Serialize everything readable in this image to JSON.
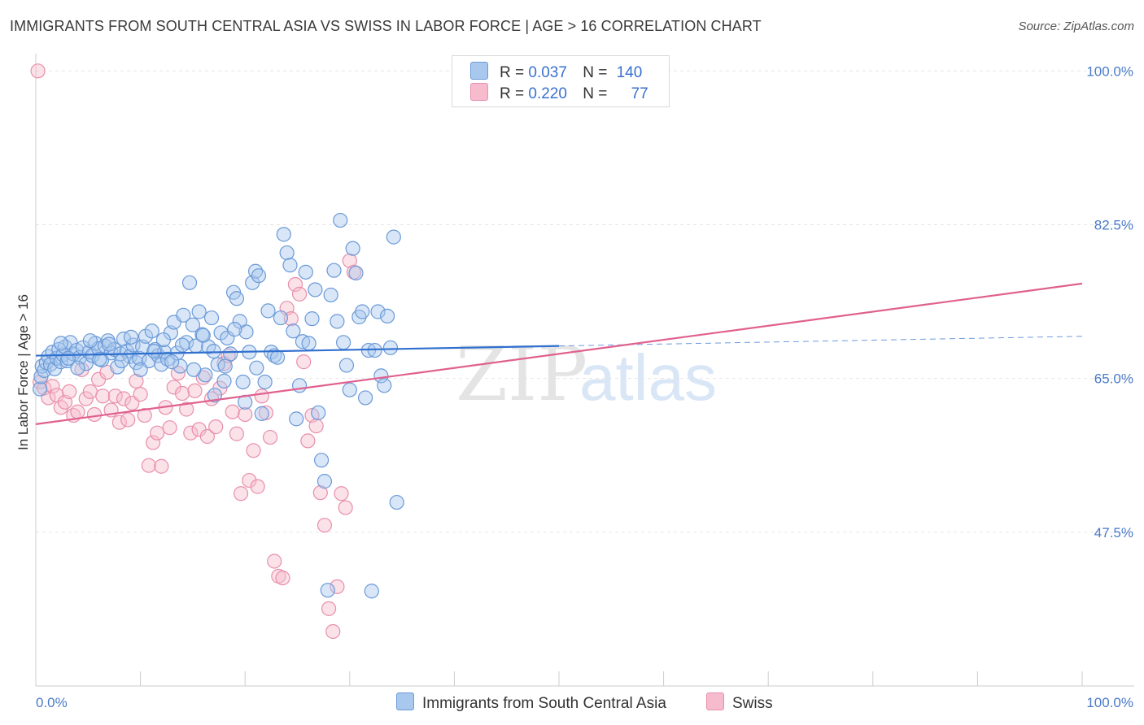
{
  "header": {
    "title": "IMMIGRANTS FROM SOUTH CENTRAL ASIA VS SWISS IN LABOR FORCE | AGE > 16 CORRELATION CHART",
    "source": "Source: ZipAtlas.com"
  },
  "watermark": {
    "zip": "ZIP",
    "atlas": "atlas"
  },
  "legend": {
    "rows": [
      {
        "r_label": "R =",
        "r_value": "0.037",
        "n_label": "N =",
        "n_value": "140"
      },
      {
        "r_label": "R =",
        "r_value": "0.220",
        "n_label": "N =",
        "n_value": "77"
      }
    ]
  },
  "bottom_legend": {
    "items": [
      {
        "label": "Immigrants from South Central Asia"
      },
      {
        "label": "Swiss"
      }
    ]
  },
  "colors": {
    "blue_fill": "#a9c8ee",
    "blue_stroke": "#6b9ad8",
    "blue_line": "#2f6fcf",
    "pink_fill": "#f6bccd",
    "pink_stroke": "#e88fac",
    "pink_line": "#e0608e",
    "grid": "#e6e6e6",
    "axis": "#cccccc",
    "tick_text": "#4a7ac8"
  },
  "chart_data": {
    "type": "scatter",
    "title": "IMMIGRANTS FROM SOUTH CENTRAL ASIA VS SWISS IN LABOR FORCE | AGE > 16 CORRELATION CHART",
    "ylabel": "In Labor Force | Age > 16",
    "xlabel": "",
    "xlim": [
      0,
      100
    ],
    "ylim": [
      30,
      101.6
    ],
    "x_tick_labels": [
      "0.0%",
      "100.0%"
    ],
    "y_ticks": [
      47.5,
      65.0,
      82.5,
      100.0
    ],
    "y_tick_labels": [
      "47.5%",
      "65.0%",
      "82.5%",
      "100.0%"
    ],
    "grid": true,
    "legend_position": "top-center",
    "series": [
      {
        "name": "Immigrants from South Central Asia",
        "R": 0.037,
        "N": 140,
        "trend": {
          "x0": 0,
          "y0": 67.6,
          "x1": 50,
          "y1": 68.7,
          "dash_x1": 100,
          "dash_y1": 69.8
        },
        "points": [
          [
            0.4,
            63.8
          ],
          [
            0.5,
            65.2
          ],
          [
            0.6,
            66.4
          ],
          [
            0.8,
            65.9
          ],
          [
            1.0,
            66.8
          ],
          [
            1.2,
            67.5
          ],
          [
            1.4,
            66.6
          ],
          [
            1.6,
            68.0
          ],
          [
            1.8,
            66.1
          ],
          [
            2.0,
            67.3
          ],
          [
            2.2,
            68.3
          ],
          [
            2.4,
            66.9
          ],
          [
            2.6,
            67.7
          ],
          [
            2.8,
            68.6
          ],
          [
            3.0,
            67.0
          ],
          [
            3.3,
            69.1
          ],
          [
            3.6,
            67.8
          ],
          [
            3.9,
            68.2
          ],
          [
            4.2,
            67.4
          ],
          [
            4.5,
            68.5
          ],
          [
            4.8,
            66.7
          ],
          [
            5.1,
            68.0
          ],
          [
            5.4,
            67.6
          ],
          [
            5.7,
            69.0
          ],
          [
            6.0,
            68.4
          ],
          [
            6.3,
            67.1
          ],
          [
            6.6,
            68.7
          ],
          [
            6.9,
            69.3
          ],
          [
            7.2,
            67.9
          ],
          [
            7.5,
            68.3
          ],
          [
            7.8,
            66.3
          ],
          [
            8.1,
            67.8
          ],
          [
            8.4,
            69.5
          ],
          [
            8.7,
            68.1
          ],
          [
            9.0,
            67.5
          ],
          [
            9.3,
            68.8
          ],
          [
            9.6,
            66.8
          ],
          [
            9.9,
            67.3
          ],
          [
            10.2,
            68.6
          ],
          [
            10.5,
            69.8
          ],
          [
            10.8,
            67.0
          ],
          [
            11.1,
            70.4
          ],
          [
            11.4,
            68.3
          ],
          [
            11.7,
            67.6
          ],
          [
            12.0,
            66.6
          ],
          [
            12.3,
            68.0
          ],
          [
            12.6,
            67.2
          ],
          [
            12.9,
            70.2
          ],
          [
            13.2,
            71.4
          ],
          [
            13.5,
            67.9
          ],
          [
            13.8,
            66.4
          ],
          [
            14.1,
            72.2
          ],
          [
            14.4,
            69.1
          ],
          [
            14.7,
            75.9
          ],
          [
            15.0,
            71.1
          ],
          [
            15.3,
            68.7
          ],
          [
            15.6,
            72.6
          ],
          [
            15.9,
            70.0
          ],
          [
            16.2,
            65.4
          ],
          [
            16.5,
            68.6
          ],
          [
            16.8,
            71.9
          ],
          [
            17.1,
            63.1
          ],
          [
            17.4,
            66.6
          ],
          [
            17.7,
            70.2
          ],
          [
            18.0,
            64.7
          ],
          [
            18.3,
            69.6
          ],
          [
            18.6,
            67.8
          ],
          [
            18.9,
            74.8
          ],
          [
            19.2,
            74.1
          ],
          [
            19.5,
            71.5
          ],
          [
            19.8,
            64.6
          ],
          [
            20.1,
            70.3
          ],
          [
            20.4,
            68.0
          ],
          [
            20.7,
            75.9
          ],
          [
            21.0,
            77.2
          ],
          [
            21.3,
            76.7
          ],
          [
            21.6,
            61.0
          ],
          [
            21.9,
            64.6
          ],
          [
            22.2,
            72.7
          ],
          [
            22.5,
            68.0
          ],
          [
            22.8,
            67.6
          ],
          [
            23.1,
            67.4
          ],
          [
            23.4,
            71.9
          ],
          [
            23.7,
            81.4
          ],
          [
            24.0,
            79.3
          ],
          [
            24.3,
            77.9
          ],
          [
            24.6,
            70.4
          ],
          [
            24.9,
            60.4
          ],
          [
            25.2,
            64.2
          ],
          [
            25.5,
            69.2
          ],
          [
            25.8,
            77.1
          ],
          [
            26.1,
            69.0
          ],
          [
            26.4,
            71.8
          ],
          [
            26.7,
            75.1
          ],
          [
            27.0,
            61.1
          ],
          [
            27.3,
            55.7
          ],
          [
            27.6,
            53.3
          ],
          [
            27.9,
            40.9
          ],
          [
            28.2,
            74.5
          ],
          [
            28.5,
            77.3
          ],
          [
            28.8,
            71.5
          ],
          [
            29.1,
            83.0
          ],
          [
            29.4,
            69.1
          ],
          [
            29.7,
            66.5
          ],
          [
            30.0,
            63.7
          ],
          [
            30.3,
            79.8
          ],
          [
            30.6,
            77.0
          ],
          [
            30.9,
            72.0
          ],
          [
            31.2,
            72.6
          ],
          [
            31.5,
            62.8
          ],
          [
            31.8,
            68.2
          ],
          [
            32.1,
            40.8
          ],
          [
            32.4,
            68.2
          ],
          [
            32.7,
            72.6
          ],
          [
            33.0,
            65.3
          ],
          [
            33.3,
            64.2
          ],
          [
            33.6,
            72.1
          ],
          [
            33.9,
            68.5
          ],
          [
            34.2,
            81.1
          ],
          [
            34.5,
            50.9
          ],
          [
            2.4,
            69.0
          ],
          [
            3.1,
            67.3
          ],
          [
            4.0,
            66.2
          ],
          [
            5.2,
            69.3
          ],
          [
            6.1,
            67.2
          ],
          [
            7.0,
            68.9
          ],
          [
            8.2,
            67.0
          ],
          [
            9.1,
            69.7
          ],
          [
            10.0,
            66.0
          ],
          [
            11.3,
            68.1
          ],
          [
            12.2,
            69.4
          ],
          [
            13.0,
            66.9
          ],
          [
            14.0,
            68.8
          ],
          [
            15.1,
            66.0
          ],
          [
            16.0,
            69.9
          ],
          [
            17.0,
            68.1
          ],
          [
            18.1,
            66.4
          ],
          [
            19.0,
            70.6
          ],
          [
            20.0,
            62.3
          ],
          [
            21.1,
            66.2
          ]
        ]
      },
      {
        "name": "Swiss",
        "R": 0.22,
        "N": 77,
        "trend": {
          "x0": 0,
          "y0": 59.8,
          "x1": 100,
          "y1": 75.8
        },
        "points": [
          [
            0.4,
            64.6
          ],
          [
            0.8,
            63.9
          ],
          [
            1.2,
            62.8
          ],
          [
            1.6,
            64.1
          ],
          [
            2.0,
            63.1
          ],
          [
            2.4,
            61.7
          ],
          [
            2.8,
            62.3
          ],
          [
            3.2,
            63.5
          ],
          [
            3.6,
            60.8
          ],
          [
            4.0,
            61.2
          ],
          [
            4.4,
            66.0
          ],
          [
            4.8,
            62.7
          ],
          [
            5.2,
            63.5
          ],
          [
            5.6,
            60.9
          ],
          [
            6.0,
            64.9
          ],
          [
            6.4,
            63.0
          ],
          [
            6.8,
            65.7
          ],
          [
            7.2,
            61.4
          ],
          [
            7.6,
            63.0
          ],
          [
            8.0,
            60.0
          ],
          [
            8.4,
            62.7
          ],
          [
            8.8,
            60.3
          ],
          [
            9.2,
            62.2
          ],
          [
            9.6,
            64.7
          ],
          [
            10.0,
            63.2
          ],
          [
            10.4,
            60.8
          ],
          [
            10.8,
            55.1
          ],
          [
            11.2,
            57.7
          ],
          [
            11.6,
            58.8
          ],
          [
            12.0,
            55.0
          ],
          [
            12.4,
            61.7
          ],
          [
            12.8,
            59.4
          ],
          [
            13.2,
            64.0
          ],
          [
            13.6,
            65.6
          ],
          [
            14.0,
            63.3
          ],
          [
            14.4,
            61.5
          ],
          [
            14.8,
            58.8
          ],
          [
            15.2,
            63.6
          ],
          [
            15.6,
            59.2
          ],
          [
            16.0,
            65.1
          ],
          [
            16.4,
            58.4
          ],
          [
            16.8,
            62.7
          ],
          [
            17.2,
            59.5
          ],
          [
            17.6,
            63.9
          ],
          [
            18.0,
            66.7
          ],
          [
            18.4,
            67.6
          ],
          [
            18.8,
            61.2
          ],
          [
            19.2,
            58.7
          ],
          [
            19.6,
            51.9
          ],
          [
            20.0,
            60.9
          ],
          [
            20.4,
            53.4
          ],
          [
            20.8,
            56.8
          ],
          [
            21.2,
            52.7
          ],
          [
            21.6,
            63.0
          ],
          [
            22.0,
            61.1
          ],
          [
            22.4,
            58.3
          ],
          [
            22.8,
            44.2
          ],
          [
            23.2,
            42.5
          ],
          [
            23.6,
            42.3
          ],
          [
            24.0,
            73.0
          ],
          [
            24.4,
            71.8
          ],
          [
            24.8,
            75.7
          ],
          [
            25.2,
            74.6
          ],
          [
            25.6,
            66.9
          ],
          [
            26.0,
            57.9
          ],
          [
            26.4,
            60.8
          ],
          [
            26.8,
            59.6
          ],
          [
            27.2,
            52.0
          ],
          [
            27.6,
            48.3
          ],
          [
            28.0,
            38.8
          ],
          [
            28.4,
            36.2
          ],
          [
            28.8,
            41.3
          ],
          [
            29.2,
            51.9
          ],
          [
            29.6,
            50.3
          ],
          [
            30.0,
            78.4
          ],
          [
            30.4,
            77.1
          ],
          [
            0.2,
            100.0
          ]
        ]
      }
    ]
  }
}
